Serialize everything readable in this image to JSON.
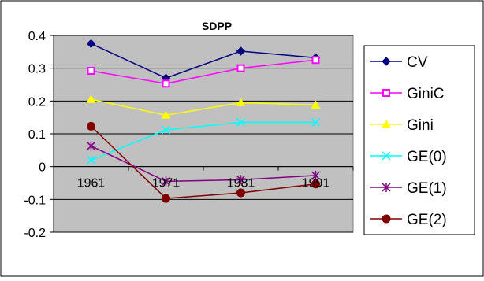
{
  "chart_data": {
    "type": "line",
    "title": "SDPP",
    "xlabel": "",
    "ylabel": "",
    "categories": [
      "1961",
      "1971",
      "1981",
      "1991"
    ],
    "ylim": [
      -0.2,
      0.4
    ],
    "yticks": [
      "0.4",
      "0.3",
      "0.2",
      "0.1",
      "0",
      "-0.1",
      "-0.2"
    ],
    "ytick_values": [
      0.4,
      0.3,
      0.2,
      0.1,
      0,
      -0.1,
      -0.2
    ],
    "grid": "horizontal",
    "legend_position": "right",
    "plot_background": "#c0c0c0",
    "series": [
      {
        "name": "CV",
        "values": [
          0.375,
          0.27,
          0.352,
          0.332
        ],
        "color": "#000080",
        "marker": "diamond"
      },
      {
        "name": "GiniC",
        "values": [
          0.292,
          0.253,
          0.3,
          0.325
        ],
        "color": "#ff00ff",
        "marker": "square"
      },
      {
        "name": "Gini",
        "values": [
          0.205,
          0.157,
          0.195,
          0.188
        ],
        "color": "#ffff00",
        "marker": "triangle"
      },
      {
        "name": "GE(0)",
        "values": [
          0.02,
          0.112,
          0.135,
          0.135
        ],
        "color": "#00ffff",
        "marker": "x"
      },
      {
        "name": "GE(1)",
        "values": [
          0.063,
          -0.045,
          -0.04,
          -0.027
        ],
        "color": "#800080",
        "marker": "star"
      },
      {
        "name": "GE(2)",
        "values": [
          0.123,
          -0.097,
          -0.08,
          -0.053
        ],
        "color": "#800000",
        "marker": "circle"
      }
    ]
  }
}
